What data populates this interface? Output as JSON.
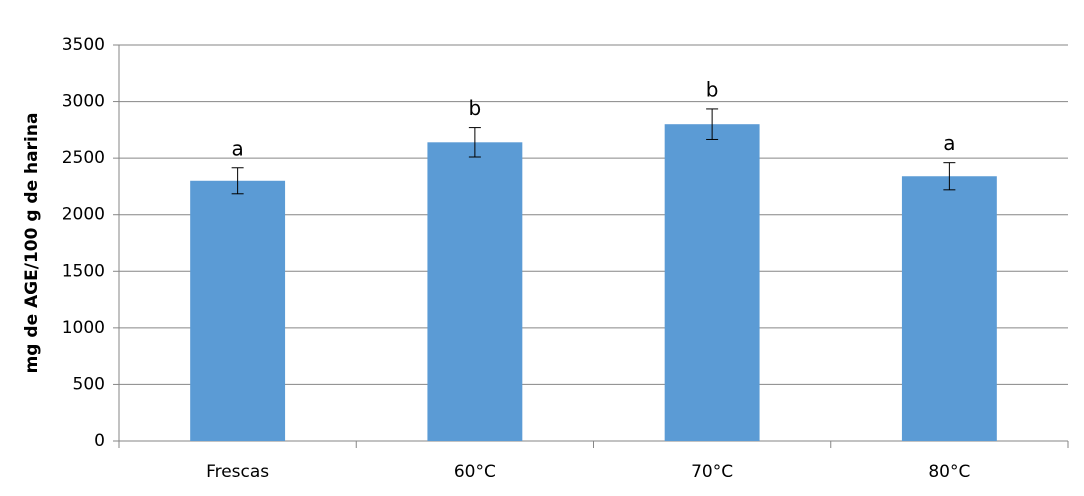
{
  "chart_data": {
    "type": "bar",
    "y_label": "mg  de AGE/100 g de harina",
    "categories": [
      "Frescas",
      "60°C",
      "70°C",
      "80°C"
    ],
    "values": [
      2300,
      2640,
      2800,
      2340
    ],
    "errors": [
      115,
      130,
      135,
      120
    ],
    "letters": [
      "a",
      "b",
      "b",
      "a"
    ],
    "color": "#5b9bd5",
    "ylim": [
      0,
      3500
    ],
    "yticks": [
      0,
      500,
      1000,
      1500,
      2000,
      2500,
      3000,
      3500
    ],
    "grid": true
  }
}
